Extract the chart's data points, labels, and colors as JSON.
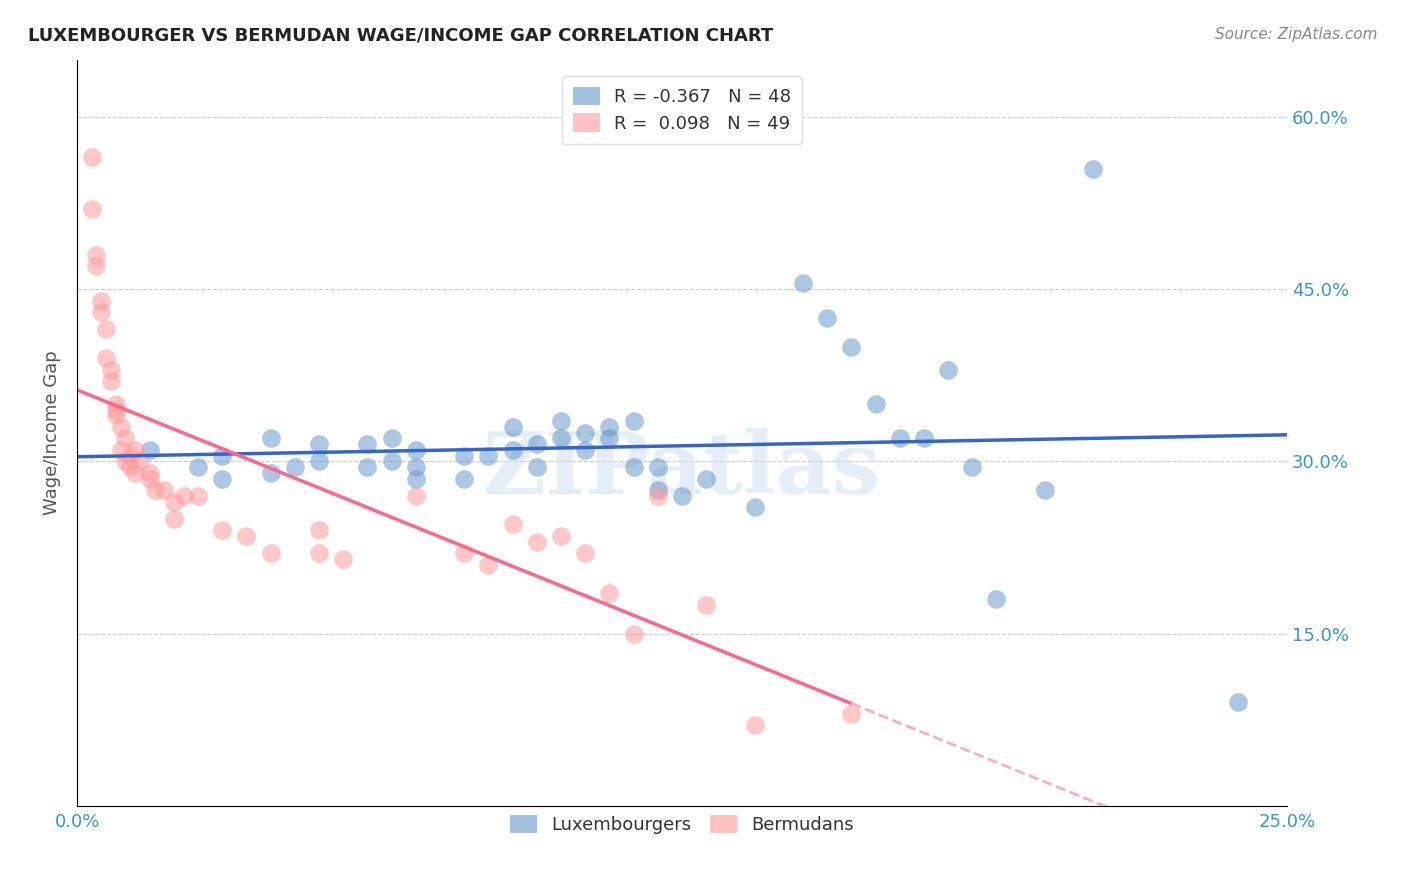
{
  "title": "LUXEMBOURGER VS BERMUDAN WAGE/INCOME GAP CORRELATION CHART",
  "source": "Source: ZipAtlas.com",
  "xlabel_label": "",
  "ylabel_label": "Wage/Income Gap",
  "x_min": 0.0,
  "x_max": 0.25,
  "y_min": 0.0,
  "y_max": 0.65,
  "x_ticks": [
    0.0,
    0.05,
    0.1,
    0.15,
    0.2,
    0.25
  ],
  "x_tick_labels": [
    "0.0%",
    "",
    "",
    "",
    "",
    "25.0%"
  ],
  "y_ticks": [
    0.15,
    0.3,
    0.45,
    0.6
  ],
  "y_tick_labels": [
    "15.0%",
    "30.0%",
    "45.0%",
    "60.0%"
  ],
  "blue_color": "#6699CC",
  "pink_color": "#FF9999",
  "blue_line_color": "#3366CC",
  "pink_line_color": "#FF6688",
  "pink_dashed_color": "#FFAACC",
  "watermark": "ZIPatlas",
  "watermark_color": "#CCDDEE",
  "legend_R_blue": "-0.367",
  "legend_N_blue": "48",
  "legend_R_pink": "0.098",
  "legend_N_pink": "49",
  "blue_scatter_x": [
    0.015,
    0.025,
    0.03,
    0.03,
    0.04,
    0.04,
    0.045,
    0.05,
    0.05,
    0.06,
    0.06,
    0.065,
    0.065,
    0.07,
    0.07,
    0.07,
    0.08,
    0.08,
    0.085,
    0.09,
    0.09,
    0.095,
    0.095,
    0.1,
    0.1,
    0.105,
    0.105,
    0.11,
    0.11,
    0.115,
    0.115,
    0.12,
    0.12,
    0.125,
    0.13,
    0.14,
    0.15,
    0.155,
    0.16,
    0.165,
    0.17,
    0.175,
    0.18,
    0.185,
    0.19,
    0.2,
    0.21,
    0.24
  ],
  "blue_scatter_y": [
    0.31,
    0.295,
    0.305,
    0.285,
    0.32,
    0.29,
    0.295,
    0.315,
    0.3,
    0.295,
    0.315,
    0.3,
    0.32,
    0.31,
    0.295,
    0.285,
    0.305,
    0.285,
    0.305,
    0.33,
    0.31,
    0.315,
    0.295,
    0.335,
    0.32,
    0.325,
    0.31,
    0.32,
    0.33,
    0.295,
    0.335,
    0.275,
    0.295,
    0.27,
    0.285,
    0.26,
    0.455,
    0.425,
    0.4,
    0.35,
    0.32,
    0.32,
    0.38,
    0.295,
    0.18,
    0.275,
    0.555,
    0.09
  ],
  "pink_scatter_x": [
    0.003,
    0.003,
    0.004,
    0.004,
    0.005,
    0.005,
    0.006,
    0.006,
    0.007,
    0.007,
    0.008,
    0.008,
    0.008,
    0.009,
    0.009,
    0.01,
    0.01,
    0.011,
    0.011,
    0.012,
    0.012,
    0.013,
    0.015,
    0.015,
    0.016,
    0.018,
    0.02,
    0.02,
    0.022,
    0.025,
    0.03,
    0.035,
    0.04,
    0.05,
    0.05,
    0.055,
    0.07,
    0.08,
    0.085,
    0.09,
    0.095,
    0.1,
    0.105,
    0.11,
    0.115,
    0.12,
    0.13,
    0.14,
    0.16
  ],
  "pink_scatter_y": [
    0.565,
    0.52,
    0.48,
    0.47,
    0.44,
    0.43,
    0.415,
    0.39,
    0.37,
    0.38,
    0.35,
    0.345,
    0.34,
    0.33,
    0.31,
    0.32,
    0.3,
    0.305,
    0.295,
    0.31,
    0.29,
    0.3,
    0.29,
    0.285,
    0.275,
    0.275,
    0.25,
    0.265,
    0.27,
    0.27,
    0.24,
    0.235,
    0.22,
    0.24,
    0.22,
    0.215,
    0.27,
    0.22,
    0.21,
    0.245,
    0.23,
    0.235,
    0.22,
    0.185,
    0.15,
    0.27,
    0.175,
    0.07,
    0.08
  ]
}
